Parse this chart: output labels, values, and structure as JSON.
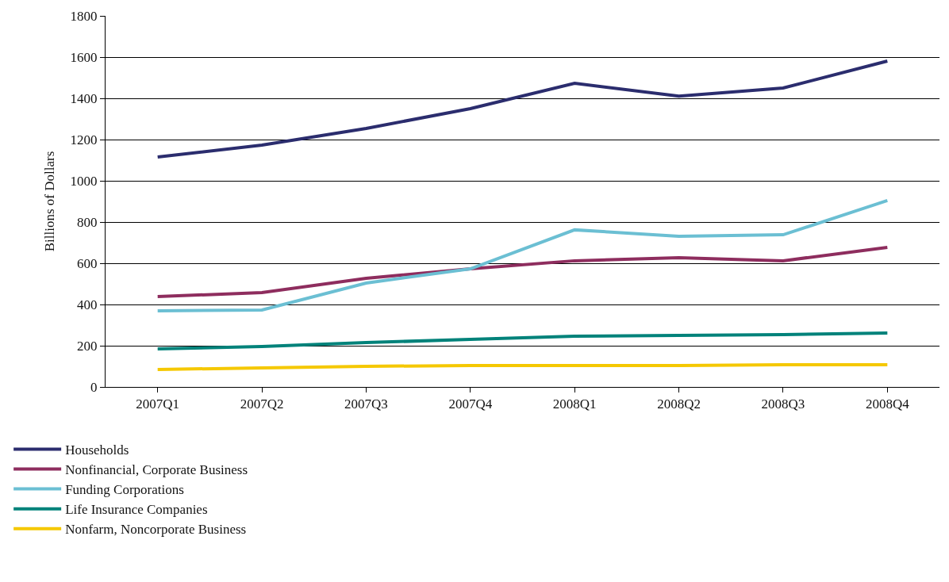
{
  "chart_data": {
    "type": "line",
    "ylabel": "Billions of Dollars",
    "categories": [
      "2007Q1",
      "2007Q2",
      "2007Q3",
      "2007Q4",
      "2008Q1",
      "2008Q2",
      "2008Q3",
      "2008Q4"
    ],
    "series": [
      {
        "name": "Households",
        "color": "#2b2d6e",
        "values": [
          1115,
          1173,
          1254,
          1350,
          1473,
          1411,
          1450,
          1581
        ]
      },
      {
        "name": "Nonfinancial, Corporate Business",
        "color": "#8e2d5e",
        "values": [
          438,
          458,
          527,
          573,
          612,
          627,
          612,
          677
        ]
      },
      {
        "name": "Funding Corporations",
        "color": "#6bbfd3",
        "values": [
          369,
          373,
          504,
          573,
          762,
          731,
          738,
          904
        ]
      },
      {
        "name": "Life Insurance Companies",
        "color": "#00827a",
        "values": [
          185,
          196,
          215,
          231,
          246,
          250,
          254,
          262
        ]
      },
      {
        "name": "Nonfarm, Noncorporate Business",
        "color": "#f5c800",
        "values": [
          85,
          92,
          100,
          104,
          104,
          104,
          108,
          108
        ]
      }
    ],
    "ylim": [
      0,
      1800
    ],
    "yticks": [
      0,
      200,
      400,
      600,
      800,
      1000,
      1200,
      1400,
      1600,
      1800
    ],
    "grid": "y",
    "legend": "bottom left",
    "marker": "none",
    "line_style": "solid"
  }
}
